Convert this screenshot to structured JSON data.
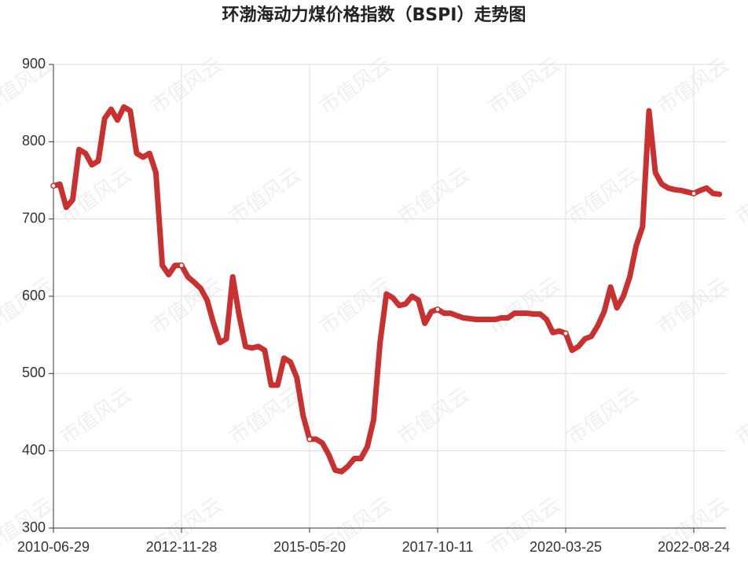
{
  "chart_data": {
    "type": "line",
    "title": "环渤海动力煤价格指数（BSPI）走势图",
    "watermark": "市值风云",
    "categories": [
      "2010-06-29",
      null,
      null,
      null,
      null,
      null,
      null,
      null,
      null,
      null,
      null,
      null,
      null,
      null,
      null,
      null,
      null,
      null,
      null,
      null,
      "2012-11-28",
      null,
      null,
      null,
      null,
      null,
      null,
      null,
      null,
      null,
      null,
      null,
      null,
      null,
      null,
      null,
      null,
      null,
      null,
      null,
      "2015-05-20",
      null,
      null,
      null,
      null,
      null,
      null,
      null,
      null,
      null,
      null,
      null,
      null,
      null,
      null,
      null,
      null,
      null,
      null,
      null,
      "2017-10-11",
      null,
      null,
      null,
      null,
      null,
      null,
      null,
      null,
      null,
      null,
      null,
      null,
      null,
      null,
      null,
      null,
      null,
      null,
      null,
      "2020-03-25",
      null,
      null,
      null,
      null,
      null,
      null,
      null,
      null,
      null,
      null,
      null,
      null,
      null,
      null,
      null,
      null,
      null,
      null,
      null,
      "2022-08-24",
      null,
      null,
      null,
      null
    ],
    "series": [
      {
        "name": "BSPI",
        "color": "#c8312f",
        "values": [
          743,
          745,
          715,
          725,
          790,
          785,
          770,
          775,
          830,
          842,
          828,
          845,
          840,
          785,
          780,
          785,
          760,
          640,
          628,
          640,
          640,
          625,
          618,
          610,
          595,
          565,
          540,
          545,
          625,
          575,
          535,
          533,
          535,
          530,
          485,
          485,
          520,
          515,
          495,
          445,
          415,
          415,
          410,
          395,
          375,
          373,
          380,
          390,
          390,
          405,
          440,
          540,
          603,
          598,
          588,
          590,
          600,
          595,
          565,
          580,
          583,
          578,
          578,
          575,
          572,
          571,
          570,
          570,
          570,
          570,
          572,
          572,
          578,
          578,
          578,
          577,
          577,
          570,
          553,
          555,
          552,
          530,
          535,
          545,
          548,
          562,
          580,
          612,
          585,
          600,
          625,
          665,
          690,
          840,
          760,
          745,
          740,
          738,
          737,
          735,
          733,
          737,
          740,
          733,
          732
        ]
      }
    ],
    "ylim": [
      300,
      900
    ],
    "yticks": [
      300,
      400,
      500,
      600,
      700,
      800,
      900
    ],
    "grid": true
  }
}
